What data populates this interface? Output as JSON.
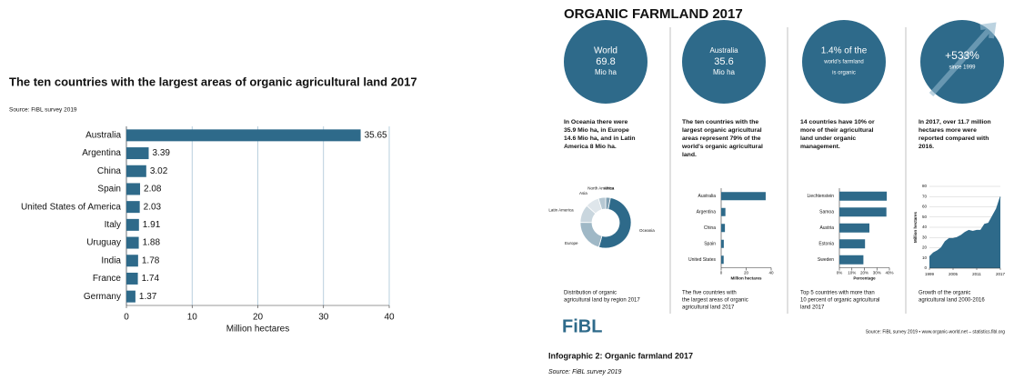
{
  "chart_data": [
    {
      "type": "hbar",
      "title": "The ten countries with the largest areas of organic agricultural land 2017",
      "subtitle": "Source: FiBL survey 2019",
      "categories": [
        "Australia",
        "Argentina",
        "China",
        "Spain",
        "United States of America",
        "Italy",
        "Uruguay",
        "India",
        "France",
        "Germany"
      ],
      "values": [
        35.65,
        3.39,
        3.02,
        2.08,
        2.03,
        1.91,
        1.88,
        1.78,
        1.74,
        1.37
      ],
      "xlabel": "Million hectares",
      "xlim": [
        0,
        40
      ],
      "xticks": [
        0,
        10,
        20,
        30,
        40
      ],
      "grid": true,
      "color": "#2e6a8a"
    },
    {
      "type": "donut",
      "caption": [
        "Distribution of organic",
        "agricultural land by region 2017"
      ],
      "categories": [
        "Africa",
        "Oceania",
        "Europe",
        "Latin America",
        "Asia",
        "North America"
      ],
      "values": [
        2.1,
        35.9,
        14.6,
        8.0,
        6.1,
        3.2
      ],
      "colors": [
        "#7f9fb2",
        "#2e6a8a",
        "#9fb8c6",
        "#c9d6de",
        "#dfe6eb",
        "#b6c8d3"
      ]
    },
    {
      "type": "hbar",
      "caption": [
        "The five countries with",
        "the largest areas of organic",
        "agricultural land 2017"
      ],
      "categories": [
        "Australia",
        "Argentina",
        "China",
        "Spain",
        "United States"
      ],
      "values": [
        35.6,
        3.4,
        3.0,
        2.1,
        2.0
      ],
      "xlabel": "Million hectares",
      "xlim": [
        0,
        40
      ],
      "xticks": [
        0,
        20,
        40
      ],
      "grid": false,
      "color": "#2e6a8a"
    },
    {
      "type": "hbar",
      "caption": [
        "Top 5 countries with more than",
        "10 percent of organic agricultural",
        "land 2017"
      ],
      "categories": [
        "Liechtenstein",
        "Samoa",
        "Austria",
        "Estonia",
        "Sweden"
      ],
      "values": [
        37.9,
        37.6,
        24.0,
        20.5,
        19.2
      ],
      "xlabel": "Percentage",
      "xlim": [
        0,
        40
      ],
      "xticks": [
        {
          "value": 0,
          "label": "0%"
        },
        {
          "value": 10,
          "label": "10%"
        },
        {
          "value": 20,
          "label": "20%"
        },
        {
          "value": 30,
          "label": "30%"
        },
        {
          "value": 40,
          "label": "40%"
        }
      ],
      "grid": false,
      "color": "#2e6a8a"
    },
    {
      "type": "area",
      "caption": [
        "Growth of the organic",
        "agricultural land 2000-2016"
      ],
      "x": [
        1999,
        2000,
        2001,
        2002,
        2003,
        2004,
        2005,
        2006,
        2007,
        2008,
        2009,
        2010,
        2011,
        2012,
        2013,
        2014,
        2015,
        2016,
        2017
      ],
      "values": [
        11,
        15,
        17,
        20,
        26,
        29,
        29,
        30,
        32,
        35,
        37,
        36,
        37,
        37,
        43,
        44,
        51,
        58,
        69.8
      ],
      "ylabel": "Million hectares",
      "xlim": [
        1999,
        2017
      ],
      "xticks": [
        1999,
        2005,
        2011,
        2017
      ],
      "ylim": [
        0,
        80
      ],
      "yticks": [
        0,
        10,
        20,
        30,
        40,
        50,
        60,
        70,
        80
      ],
      "grid": true,
      "color": "#2e6a8a"
    }
  ],
  "infographic": {
    "title": "ORGANIC FARMLAND 2017",
    "circles": [
      {
        "lines": [
          "World",
          "69.8",
          "Mio ha"
        ]
      },
      {
        "lines": [
          "Australia",
          "35.6",
          "Mio ha"
        ]
      },
      {
        "lines": [
          "1.4% of the",
          "world's farmland",
          "is organic"
        ]
      },
      {
        "lines": [
          "+533%",
          "since 1999"
        ]
      }
    ],
    "columns": [
      {
        "text": [
          "In Oceania there were",
          "35.9 Mio ha, in Europe",
          "14.6 Mio ha, and in Latin",
          "America 8 Mio ha."
        ]
      },
      {
        "text": [
          "The ten countries with the",
          "largest organic agricultural",
          "areas represent 79% of the",
          "world's organic agricultural",
          "land."
        ]
      },
      {
        "text": [
          "14 countries have 10% or",
          "more of their agricultural",
          "land under organic",
          "management."
        ]
      },
      {
        "text": [
          "In 2017, over 11.7 million",
          "hectares more were",
          "reported compared with",
          "2016."
        ]
      }
    ],
    "logo": "FiBL",
    "source": "Source: FiBL survey 2019 • www.organic-world.net – statistics.fibl.org",
    "caption": "Infographic 2: Organic farmland 2017",
    "caption_source": "Source: FiBL survey 2019"
  }
}
